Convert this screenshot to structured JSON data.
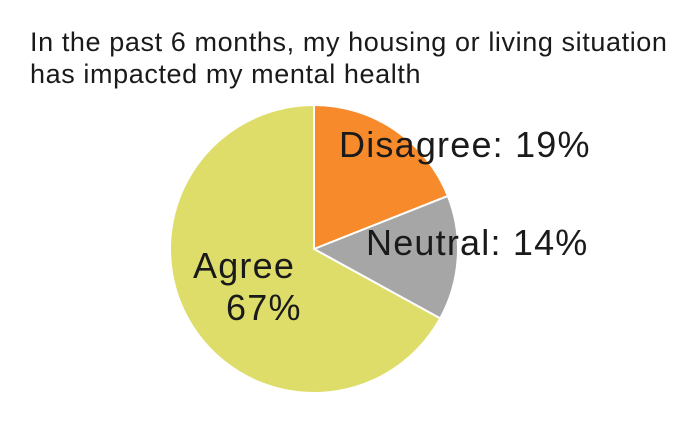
{
  "chart_data": {
    "type": "pie",
    "title": "In the past 6 months, my housing or living situation has impacted my mental health",
    "categories": [
      "Disagree",
      "Neutral",
      "Agree"
    ],
    "values": [
      19,
      14,
      67
    ],
    "unit": "%",
    "colors": [
      "#f78a2b",
      "#a6a6a6",
      "#dedd6a"
    ],
    "labels": [
      "Disagree: 19%",
      "Neutral: 14%",
      "Agree 67%"
    ],
    "start_angle_deg": 0,
    "direction": "clockwise",
    "legend": "none"
  }
}
